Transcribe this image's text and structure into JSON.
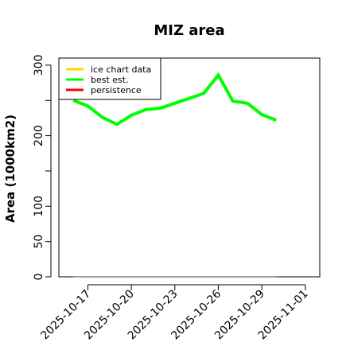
{
  "chart_data": {
    "type": "line",
    "title": "MIZ area",
    "ylabel": "Area (1000km2)",
    "xlabel": "",
    "ylim": [
      0,
      310
    ],
    "y_ticks": [
      0,
      50,
      100,
      200,
      300
    ],
    "y_minor_ticks": [
      150,
      250
    ],
    "xlim": [
      "2025-10-15",
      "2025-11-02"
    ],
    "x_ticks": [
      "2025-10-17",
      "2025-10-20",
      "2025-10-23",
      "2025-10-26",
      "2025-10-29",
      "2025-11-01"
    ],
    "legend": {
      "placement": "top-left",
      "entries": [
        {
          "label": "ice chart data",
          "color": "#ffd700"
        },
        {
          "label": "best est.",
          "color": "#00ff00"
        },
        {
          "label": "persistence",
          "color": "#ff0000"
        }
      ]
    },
    "series": [
      {
        "name": "best est.",
        "color": "#00ff00",
        "x": [
          "2025-10-16",
          "2025-10-17",
          "2025-10-18",
          "2025-10-19",
          "2025-10-20",
          "2025-10-21",
          "2025-10-22",
          "2025-10-23",
          "2025-10-24",
          "2025-10-25",
          "2025-10-26",
          "2025-10-27",
          "2025-10-28",
          "2025-10-29",
          "2025-10-30"
        ],
        "y": [
          250,
          242,
          226,
          216,
          229,
          237,
          239,
          246,
          253,
          260,
          286,
          249,
          246,
          230,
          222
        ]
      },
      {
        "name": "",
        "color": "#808080",
        "x": [
          "2025-10-16",
          "2025-10-30"
        ],
        "y": [
          0,
          0
        ]
      }
    ]
  }
}
